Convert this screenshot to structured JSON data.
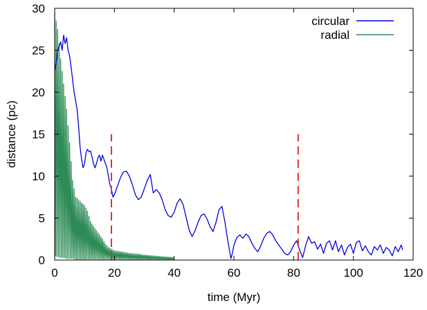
{
  "chart_data": {
    "type": "line",
    "title": "",
    "xlabel": "time (Myr)",
    "ylabel": "distance (pc)",
    "xlim": [
      0,
      120
    ],
    "ylim": [
      0,
      30
    ],
    "x_ticks": [
      0,
      20,
      40,
      60,
      80,
      100,
      120
    ],
    "y_ticks": [
      0,
      5,
      10,
      15,
      20,
      25,
      30
    ],
    "legend_position": "top-right",
    "grid": false,
    "series": [
      {
        "name": "circular",
        "color": "#0000e0",
        "style": "solid",
        "points": [
          [
            0,
            22.5
          ],
          [
            0.5,
            23.5
          ],
          [
            1,
            25.0
          ],
          [
            1.5,
            25.5
          ],
          [
            2,
            26.0
          ],
          [
            2.5,
            25.0
          ],
          [
            3,
            26.8
          ],
          [
            3.5,
            25.8
          ],
          [
            4,
            26.5
          ],
          [
            4.5,
            25.0
          ],
          [
            5,
            24.3
          ],
          [
            5.5,
            23.0
          ],
          [
            6,
            21.5
          ],
          [
            6.5,
            20.0
          ],
          [
            7,
            19.0
          ],
          [
            7.5,
            18.0
          ],
          [
            8,
            16.0
          ],
          [
            8.5,
            13.5
          ],
          [
            9,
            12.0
          ],
          [
            9.5,
            11.0
          ],
          [
            10,
            11.5
          ],
          [
            10.5,
            12.8
          ],
          [
            11,
            13.2
          ],
          [
            11.5,
            12.9
          ],
          [
            12,
            13.0
          ],
          [
            12.5,
            12.3
          ],
          [
            13,
            11.5
          ],
          [
            13.5,
            11.0
          ],
          [
            14,
            11.5
          ],
          [
            14.5,
            12.2
          ],
          [
            15,
            12.5
          ],
          [
            15.5,
            11.8
          ],
          [
            16,
            12.5
          ],
          [
            16.5,
            12.0
          ],
          [
            17,
            11.5
          ],
          [
            17.5,
            11.0
          ],
          [
            18,
            10.0
          ],
          [
            18.5,
            9.0
          ],
          [
            19,
            8.5
          ],
          [
            19.5,
            7.5
          ],
          [
            20,
            7.8
          ],
          [
            21,
            8.8
          ],
          [
            22,
            9.8
          ],
          [
            23,
            10.5
          ],
          [
            24,
            10.6
          ],
          [
            25,
            10.0
          ],
          [
            26,
            9.0
          ],
          [
            27,
            7.8
          ],
          [
            28,
            7.2
          ],
          [
            29,
            7.5
          ],
          [
            30,
            8.5
          ],
          [
            31,
            9.5
          ],
          [
            32,
            10.2
          ],
          [
            33,
            8.0
          ],
          [
            34,
            8.4
          ],
          [
            35,
            8.0
          ],
          [
            36,
            7.2
          ],
          [
            37,
            6.0
          ],
          [
            38,
            5.3
          ],
          [
            39,
            5.1
          ],
          [
            40,
            5.7
          ],
          [
            41,
            6.8
          ],
          [
            42,
            7.3
          ],
          [
            43,
            6.6
          ],
          [
            44,
            5.1
          ],
          [
            45,
            3.6
          ],
          [
            46,
            2.8
          ],
          [
            47,
            3.5
          ],
          [
            48,
            4.5
          ],
          [
            49,
            5.3
          ],
          [
            50,
            5.5
          ],
          [
            51,
            4.9
          ],
          [
            52,
            4.0
          ],
          [
            53,
            3.4
          ],
          [
            54,
            4.5
          ],
          [
            55,
            6.0
          ],
          [
            56,
            6.4
          ],
          [
            57,
            4.5
          ],
          [
            58,
            2.2
          ],
          [
            59,
            0.2
          ],
          [
            59.5,
            0.8
          ],
          [
            60,
            1.8
          ],
          [
            61,
            2.7
          ],
          [
            62,
            3.0
          ],
          [
            63,
            2.6
          ],
          [
            64,
            3.1
          ],
          [
            65,
            2.8
          ],
          [
            66,
            2.0
          ],
          [
            67,
            1.4
          ],
          [
            68,
            1.0
          ],
          [
            69,
            1.7
          ],
          [
            70,
            2.6
          ],
          [
            71,
            3.2
          ],
          [
            72,
            3.4
          ],
          [
            73,
            3.0
          ],
          [
            74,
            2.3
          ],
          [
            75,
            1.8
          ],
          [
            76,
            1.3
          ],
          [
            77,
            0.8
          ],
          [
            78,
            0.6
          ],
          [
            79,
            1.0
          ],
          [
            80,
            1.8
          ],
          [
            81,
            2.3
          ],
          [
            82,
            1.2
          ],
          [
            83,
            0.3
          ],
          [
            84,
            1.7
          ],
          [
            85,
            2.8
          ],
          [
            86,
            2.0
          ],
          [
            87,
            2.2
          ],
          [
            88,
            1.3
          ],
          [
            89,
            1.9
          ],
          [
            90,
            0.8
          ],
          [
            91,
            2.0
          ],
          [
            92,
            2.3
          ],
          [
            93,
            1.2
          ],
          [
            94,
            2.3
          ],
          [
            95,
            1.0
          ],
          [
            96,
            1.8
          ],
          [
            97,
            0.6
          ],
          [
            98,
            1.5
          ],
          [
            99,
            1.9
          ],
          [
            100,
            0.8
          ],
          [
            101,
            2.1
          ],
          [
            102,
            2.3
          ],
          [
            103,
            1.1
          ],
          [
            104,
            1.7
          ],
          [
            105,
            1.0
          ],
          [
            106,
            0.6
          ],
          [
            107,
            1.6
          ],
          [
            108,
            1.2
          ],
          [
            109,
            1.8
          ],
          [
            110,
            0.8
          ],
          [
            111,
            1.5
          ],
          [
            112,
            1.2
          ],
          [
            113,
            0.5
          ],
          [
            114,
            1.6
          ],
          [
            115,
            1.0
          ],
          [
            116,
            1.8
          ],
          [
            116.5,
            1.2
          ]
        ]
      },
      {
        "name": "radial",
        "color": "#2e8b57",
        "style": "solid",
        "period": 0.5,
        "upper_envelope": [
          [
            0,
            29.5
          ],
          [
            1,
            27.5
          ],
          [
            2,
            24.0
          ],
          [
            3,
            21.0
          ],
          [
            4,
            18.0
          ],
          [
            5,
            14.0
          ],
          [
            6,
            9.5
          ],
          [
            7,
            7.5
          ],
          [
            8,
            7.2
          ],
          [
            9,
            6.8
          ],
          [
            10,
            6.5
          ],
          [
            11,
            5.8
          ],
          [
            12,
            4.6
          ],
          [
            13,
            4.0
          ],
          [
            14,
            3.5
          ],
          [
            15,
            3.0
          ],
          [
            16,
            2.5
          ],
          [
            17,
            1.9
          ],
          [
            18,
            1.5
          ],
          [
            19,
            1.3
          ],
          [
            20,
            1.1
          ],
          [
            22,
            1.0
          ],
          [
            25,
            0.8
          ],
          [
            28,
            0.7
          ],
          [
            30,
            0.6
          ],
          [
            33,
            0.5
          ],
          [
            36,
            0.4
          ],
          [
            40,
            0.3
          ]
        ],
        "lower_envelope": [
          [
            0,
            0.5
          ],
          [
            1,
            0.4
          ],
          [
            2,
            0.3
          ],
          [
            3,
            0.3
          ],
          [
            4,
            0.2
          ],
          [
            5,
            0.2
          ],
          [
            6,
            0.2
          ],
          [
            7,
            0.1
          ],
          [
            10,
            0.1
          ],
          [
            15,
            0.1
          ],
          [
            20,
            0.1
          ],
          [
            30,
            0.05
          ],
          [
            40,
            0.05
          ]
        ]
      }
    ],
    "annotations": [
      {
        "type": "vline",
        "x": 19,
        "y_from": 0,
        "y_to": 15,
        "color": "#e03030",
        "style": "dashed"
      },
      {
        "type": "vline",
        "x": 81.5,
        "y_from": 0,
        "y_to": 15,
        "color": "#e03030",
        "style": "dashed"
      }
    ]
  }
}
